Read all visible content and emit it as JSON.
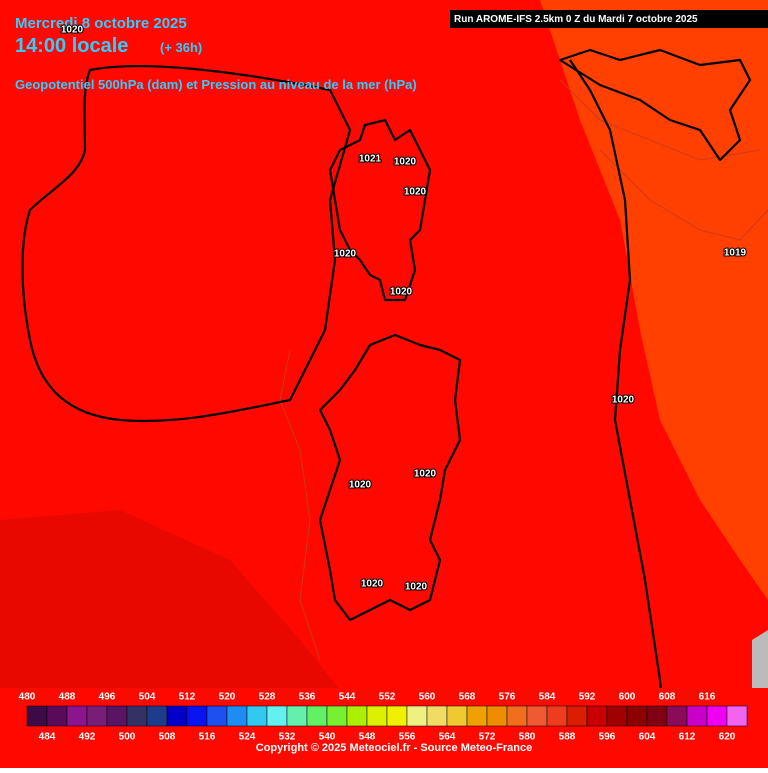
{
  "header": {
    "date": "Mercredi 8 octobre 2025",
    "time": "14:00 locale",
    "lead": "(+ 36h)",
    "field": "Geopotentiel 500hPa (dam) et Pression au niveau de la mer (hPa)",
    "run": "Run AROME-IFS 2.5km 0 Z du Mardi 7 octobre 2025"
  },
  "isobar_labels": [
    "1020",
    "1021",
    "1020",
    "1020",
    "1020",
    "1020",
    "1019",
    "1020",
    "1020",
    "1020",
    "1020",
    "1020"
  ],
  "colorbar": {
    "colors": [
      "#3c0a46",
      "#5a0a5a",
      "#8c148c",
      "#781e78",
      "#5a1464",
      "#323264",
      "#1e3c8c",
      "#0000c8",
      "#0a14f0",
      "#1e50f0",
      "#1e8cf0",
      "#32c8f0",
      "#64f0f0",
      "#64f0aa",
      "#64f064",
      "#78f032",
      "#aaf000",
      "#dcf000",
      "#f0f000",
      "#f0f082",
      "#f0dc64",
      "#f0c832",
      "#f0a000",
      "#f08c00",
      "#f06e1e",
      "#f05a32",
      "#f03c1e",
      "#dc1e00",
      "#c80000",
      "#a00000",
      "#8c0000",
      "#820014",
      "#8c0a5a",
      "#c800c8",
      "#f000f0",
      "#f064f0"
    ],
    "labels_top": [
      480,
      488,
      496,
      504,
      512,
      520,
      528,
      536,
      544,
      552,
      560,
      568,
      576,
      584,
      592,
      600,
      608,
      616
    ],
    "labels_bottom": [
      484,
      492,
      500,
      508,
      516,
      524,
      532,
      540,
      548,
      556,
      564,
      572,
      580,
      588,
      596,
      604,
      612,
      620
    ]
  },
  "footer": {
    "copyright": "Copyright © 2025 Meteociel.fr - Source Meteo-France"
  }
}
